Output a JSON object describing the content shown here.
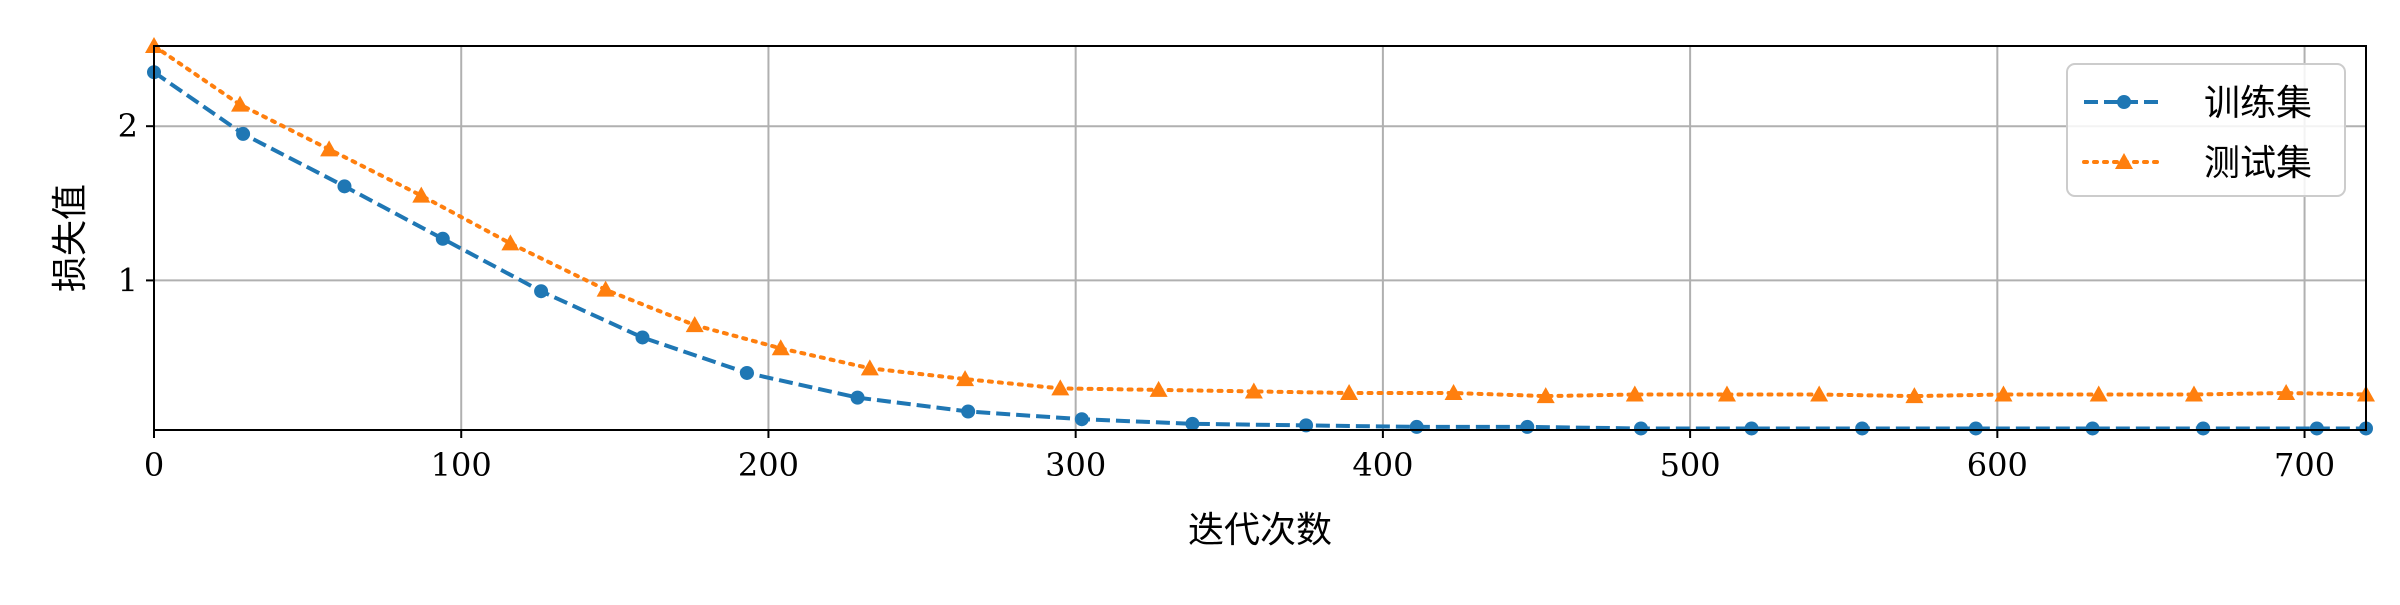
{
  "chart_data": {
    "type": "line",
    "title": "",
    "xlabel": "迭代次数",
    "ylabel": "损失值",
    "xlim": [
      0,
      720
    ],
    "ylim": [
      0.03,
      2.52
    ],
    "xticks": [
      0,
      100,
      200,
      300,
      400,
      500,
      600,
      700
    ],
    "yticks": [
      1,
      2
    ],
    "grid": true,
    "legend_position": "top-right",
    "series": [
      {
        "name": "训练集",
        "color": "#1f77b4",
        "line_style": "dashed",
        "marker": "circle",
        "x": [
          0,
          29,
          62,
          94,
          126,
          159,
          193,
          229,
          265,
          302,
          338,
          375,
          411,
          447,
          484,
          520,
          556,
          593,
          631,
          667,
          704,
          720
        ],
        "values": [
          2.35,
          1.95,
          1.61,
          1.27,
          0.93,
          0.63,
          0.4,
          0.24,
          0.15,
          0.1,
          0.07,
          0.06,
          0.05,
          0.05,
          0.04,
          0.04,
          0.04,
          0.04,
          0.04,
          0.04,
          0.04,
          0.04
        ]
      },
      {
        "name": "测试集",
        "color": "#ff7f0e",
        "line_style": "dotted",
        "marker": "triangle",
        "x": [
          0,
          28,
          57,
          87,
          116,
          147,
          176,
          204,
          233,
          264,
          295,
          327,
          358,
          389,
          423,
          453,
          482,
          512,
          542,
          573,
          602,
          633,
          664,
          694,
          720
        ],
        "values": [
          2.52,
          2.14,
          1.85,
          1.55,
          1.24,
          0.94,
          0.71,
          0.56,
          0.43,
          0.36,
          0.3,
          0.29,
          0.28,
          0.27,
          0.27,
          0.25,
          0.26,
          0.26,
          0.26,
          0.25,
          0.26,
          0.26,
          0.26,
          0.27,
          0.26
        ]
      }
    ]
  }
}
